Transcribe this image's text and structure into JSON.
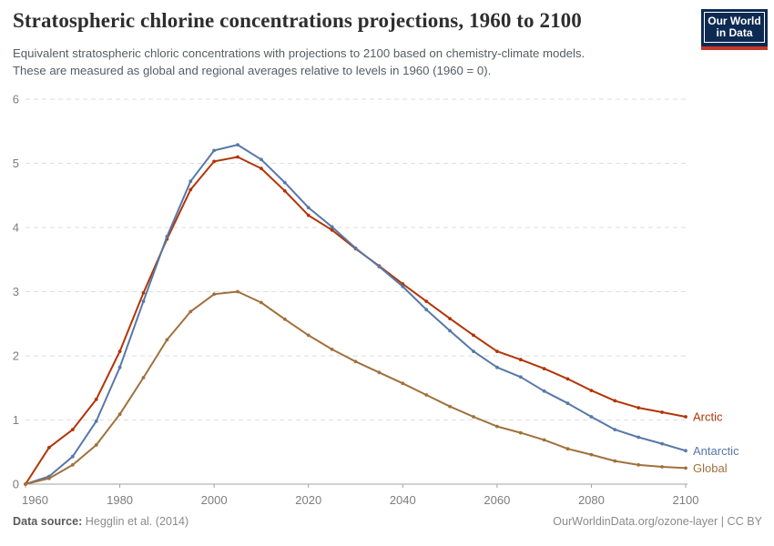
{
  "header": {
    "title": "Stratospheric chlorine concentrations projections, 1960 to 2100",
    "subtitle_line1": "Equivalent stratospheric chloric concentrations with projections to 2100 based on chemistry-climate models.",
    "subtitle_line2": "These are measured as global and regional averages relative to levels in 1960 (1960 = 0).",
    "logo_line1": "Our World",
    "logo_line2": "in Data",
    "logo_colors": {
      "background": "#0d2a52",
      "stripe": "#c5372c"
    }
  },
  "chart_data": {
    "type": "line",
    "title": "Stratospheric chlorine concentrations projections, 1960 to 2100",
    "xlabel": "",
    "ylabel": "",
    "xlim": [
      1960,
      2100
    ],
    "ylim": [
      0,
      6
    ],
    "xticks": [
      1960,
      1980,
      2000,
      2020,
      2040,
      2060,
      2080,
      2100
    ],
    "yticks": [
      0,
      1,
      2,
      3,
      4,
      5,
      6
    ],
    "grid": "horizontal-dashed",
    "legend_position": "end-of-line",
    "x": [
      1960,
      1965,
      1970,
      1975,
      1980,
      1985,
      1990,
      1995,
      2000,
      2005,
      2010,
      2015,
      2020,
      2025,
      2030,
      2035,
      2040,
      2045,
      2050,
      2055,
      2060,
      2065,
      2070,
      2075,
      2080,
      2085,
      2090,
      2095,
      2100
    ],
    "series": [
      {
        "name": "Arctic",
        "color": "#b13507",
        "values": [
          0,
          0.57,
          0.85,
          1.32,
          2.07,
          2.98,
          3.82,
          4.59,
          5.03,
          5.1,
          4.92,
          4.57,
          4.19,
          3.96,
          3.67,
          3.4,
          3.12,
          2.85,
          2.58,
          2.32,
          2.07,
          1.94,
          1.8,
          1.64,
          1.46,
          1.3,
          1.19,
          1.12,
          1.05
        ]
      },
      {
        "name": "Antarctic",
        "color": "#5878a8",
        "values": [
          0,
          0.12,
          0.43,
          0.98,
          1.82,
          2.85,
          3.86,
          4.72,
          5.2,
          5.29,
          5.06,
          4.7,
          4.31,
          4.01,
          3.68,
          3.39,
          3.08,
          2.72,
          2.39,
          2.07,
          1.82,
          1.67,
          1.45,
          1.26,
          1.05,
          0.85,
          0.73,
          0.63,
          0.52
        ]
      },
      {
        "name": "Global",
        "color": "#a0713c",
        "values": [
          0,
          0.09,
          0.3,
          0.61,
          1.09,
          1.66,
          2.25,
          2.69,
          2.96,
          3.0,
          2.83,
          2.57,
          2.32,
          2.1,
          1.91,
          1.74,
          1.57,
          1.39,
          1.21,
          1.05,
          0.9,
          0.8,
          0.69,
          0.55,
          0.46,
          0.36,
          0.3,
          0.27,
          0.25
        ]
      }
    ],
    "axis_colors": {
      "gridline": "#dedede",
      "axis_line": "#a3a3a3",
      "tick_label": "#7d7d7d"
    }
  },
  "footer": {
    "source_label": "Data source:",
    "source_value": "Hegglin et al. (2014)",
    "credit": "OurWorldinData.org/ozone-layer | CC BY"
  }
}
